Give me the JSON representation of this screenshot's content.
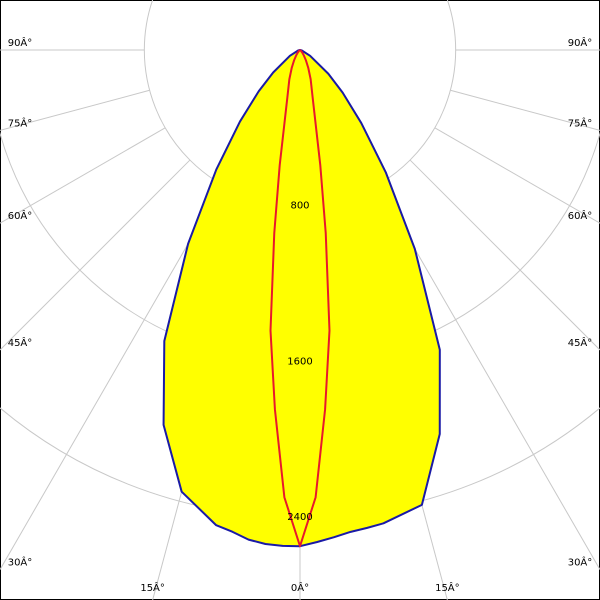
{
  "chart_data": {
    "type": "polar",
    "x": [
      -90,
      -75,
      -60,
      -50,
      -45,
      -40,
      -35,
      -30,
      -25,
      -20,
      -15,
      -10,
      -8,
      -6,
      -4,
      -2,
      0,
      2,
      4,
      6,
      8,
      10,
      15,
      20,
      25,
      30,
      35,
      40,
      45,
      50,
      60,
      75,
      90
    ],
    "series": [
      {
        "color": "#1a1aa6",
        "fill": "#ffff00",
        "values": [
          0,
          10,
          60,
          180,
          300,
          480,
          750,
          1150,
          1650,
          2050,
          2350,
          2480,
          2500,
          2530,
          2545,
          2550,
          2550,
          2530,
          2510,
          2490,
          2480,
          2470,
          2420,
          2100,
          1700,
          1180,
          770,
          490,
          310,
          190,
          60,
          10,
          0
        ]
      },
      {
        "color": "#e8182c",
        "fill": null,
        "values": [
          0,
          0,
          2,
          5,
          10,
          20,
          35,
          60,
          100,
          160,
          250,
          600,
          950,
          1450,
          1850,
          2300,
          2550,
          2300,
          1850,
          1450,
          950,
          600,
          250,
          160,
          100,
          60,
          35,
          20,
          10,
          5,
          2,
          0,
          0
        ]
      }
    ],
    "rlim": [
      0,
      2400
    ],
    "rticks": [
      800,
      1600,
      2400
    ],
    "angle_ticks": [
      {
        "value": -90,
        "label": "90Â°"
      },
      {
        "value": -75,
        "label": "75Â°"
      },
      {
        "value": -60,
        "label": "60Â°"
      },
      {
        "value": -45,
        "label": "45Â°"
      },
      {
        "value": -30,
        "label": "30Â°"
      },
      {
        "value": -15,
        "label": "15Â°"
      },
      {
        "value": 0,
        "label": "0Â°"
      },
      {
        "value": 15,
        "label": "15Â°"
      },
      {
        "value": 30,
        "label": "30Â°"
      },
      {
        "value": 45,
        "label": "45Â°"
      },
      {
        "value": 60,
        "label": "60Â°"
      },
      {
        "value": 75,
        "label": "75Â°"
      },
      {
        "value": 90,
        "label": "90Â°"
      }
    ]
  }
}
